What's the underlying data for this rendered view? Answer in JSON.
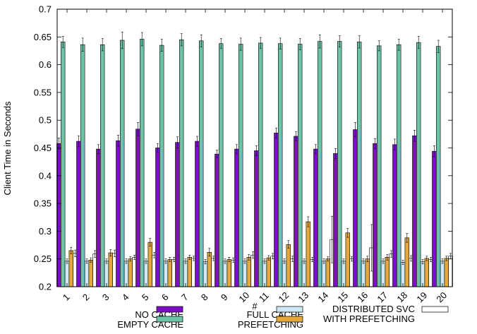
{
  "chart_data": {
    "type": "bar",
    "xlabel": "#",
    "ylabel": "Client Time in Seconds",
    "ylim": [
      0.2,
      0.7
    ],
    "yticks": [
      "0.2",
      "0.25",
      "0.3",
      "0.35",
      "0.4",
      "0.45",
      "0.5",
      "0.55",
      "0.6",
      "0.65",
      "0.7"
    ],
    "grid": false,
    "legend_position": "bottom",
    "categories": [
      "1",
      "2",
      "3",
      "4",
      "5",
      "6",
      "7",
      "8",
      "9",
      "10",
      "11",
      "12",
      "13",
      "14",
      "15",
      "16",
      "17",
      "18",
      "19",
      "20"
    ],
    "series": [
      {
        "name": "NO CACHE",
        "color": "#7b0fc4",
        "values": [
          0.458,
          0.462,
          0.448,
          0.463,
          0.484,
          0.45,
          0.46,
          0.462,
          0.439,
          0.448,
          0.445,
          0.477,
          0.471,
          0.448,
          0.44,
          0.483,
          0.458,
          0.456,
          0.472,
          0.444
        ],
        "errors": [
          0.01,
          0.01,
          0.008,
          0.01,
          0.012,
          0.008,
          0.01,
          0.009,
          0.007,
          0.008,
          0.009,
          0.009,
          0.008,
          0.008,
          0.009,
          0.013,
          0.009,
          0.01,
          0.01,
          0.01
        ]
      },
      {
        "name": "EMPTY CACHE",
        "color": "#6cc3a8",
        "values": [
          0.641,
          0.636,
          0.636,
          0.644,
          0.646,
          0.635,
          0.645,
          0.643,
          0.638,
          0.637,
          0.639,
          0.638,
          0.637,
          0.642,
          0.642,
          0.641,
          0.634,
          0.636,
          0.64,
          0.633
        ],
        "errors": [
          0.01,
          0.012,
          0.011,
          0.015,
          0.012,
          0.011,
          0.011,
          0.011,
          0.009,
          0.011,
          0.01,
          0.01,
          0.01,
          0.012,
          0.01,
          0.011,
          0.009,
          0.01,
          0.011,
          0.011
        ]
      },
      {
        "name": "FULL CACHE",
        "color": "#cfe8f5",
        "values": [
          0.246,
          0.246,
          0.246,
          0.246,
          0.246,
          0.246,
          0.246,
          0.245,
          0.246,
          0.246,
          0.246,
          0.246,
          0.246,
          0.246,
          0.246,
          0.246,
          0.246,
          0.244,
          0.245,
          0.246
        ],
        "errors": [
          0.004,
          0.004,
          0.004,
          0.004,
          0.004,
          0.004,
          0.004,
          0.004,
          0.004,
          0.004,
          0.004,
          0.004,
          0.004,
          0.004,
          0.004,
          0.004,
          0.004,
          0.004,
          0.004,
          0.004
        ]
      },
      {
        "name": "PREFETCHING",
        "color": "#e7a83b",
        "values": [
          0.265,
          0.248,
          0.261,
          0.25,
          0.28,
          0.249,
          0.253,
          0.262,
          0.249,
          0.253,
          0.252,
          0.276,
          0.317,
          0.25,
          0.297,
          0.25,
          0.253,
          0.288,
          0.251,
          0.251
        ],
        "errors": [
          0.006,
          0.004,
          0.006,
          0.004,
          0.007,
          0.004,
          0.004,
          0.007,
          0.004,
          0.005,
          0.004,
          0.007,
          0.009,
          0.004,
          0.008,
          0.005,
          0.005,
          0.008,
          0.004,
          0.004
        ]
      },
      {
        "name": "DISTRIBUTED SVC WITH PREFETCHING",
        "color": "#ffffff",
        "values": [
          0.26,
          0.259,
          0.26,
          0.253,
          0.257,
          0.249,
          0.251,
          0.251,
          0.248,
          0.257,
          0.255,
          0.25,
          0.249,
          0.285,
          0.25,
          0.27,
          0.259,
          0.251,
          0.249,
          0.255
        ],
        "errors": [
          0.006,
          0.006,
          0.006,
          0.004,
          0.005,
          0.004,
          0.004,
          0.004,
          0.004,
          0.006,
          0.005,
          0.005,
          0.004,
          0.042,
          0.004,
          0.042,
          0.006,
          0.005,
          0.004,
          0.005
        ]
      }
    ]
  }
}
